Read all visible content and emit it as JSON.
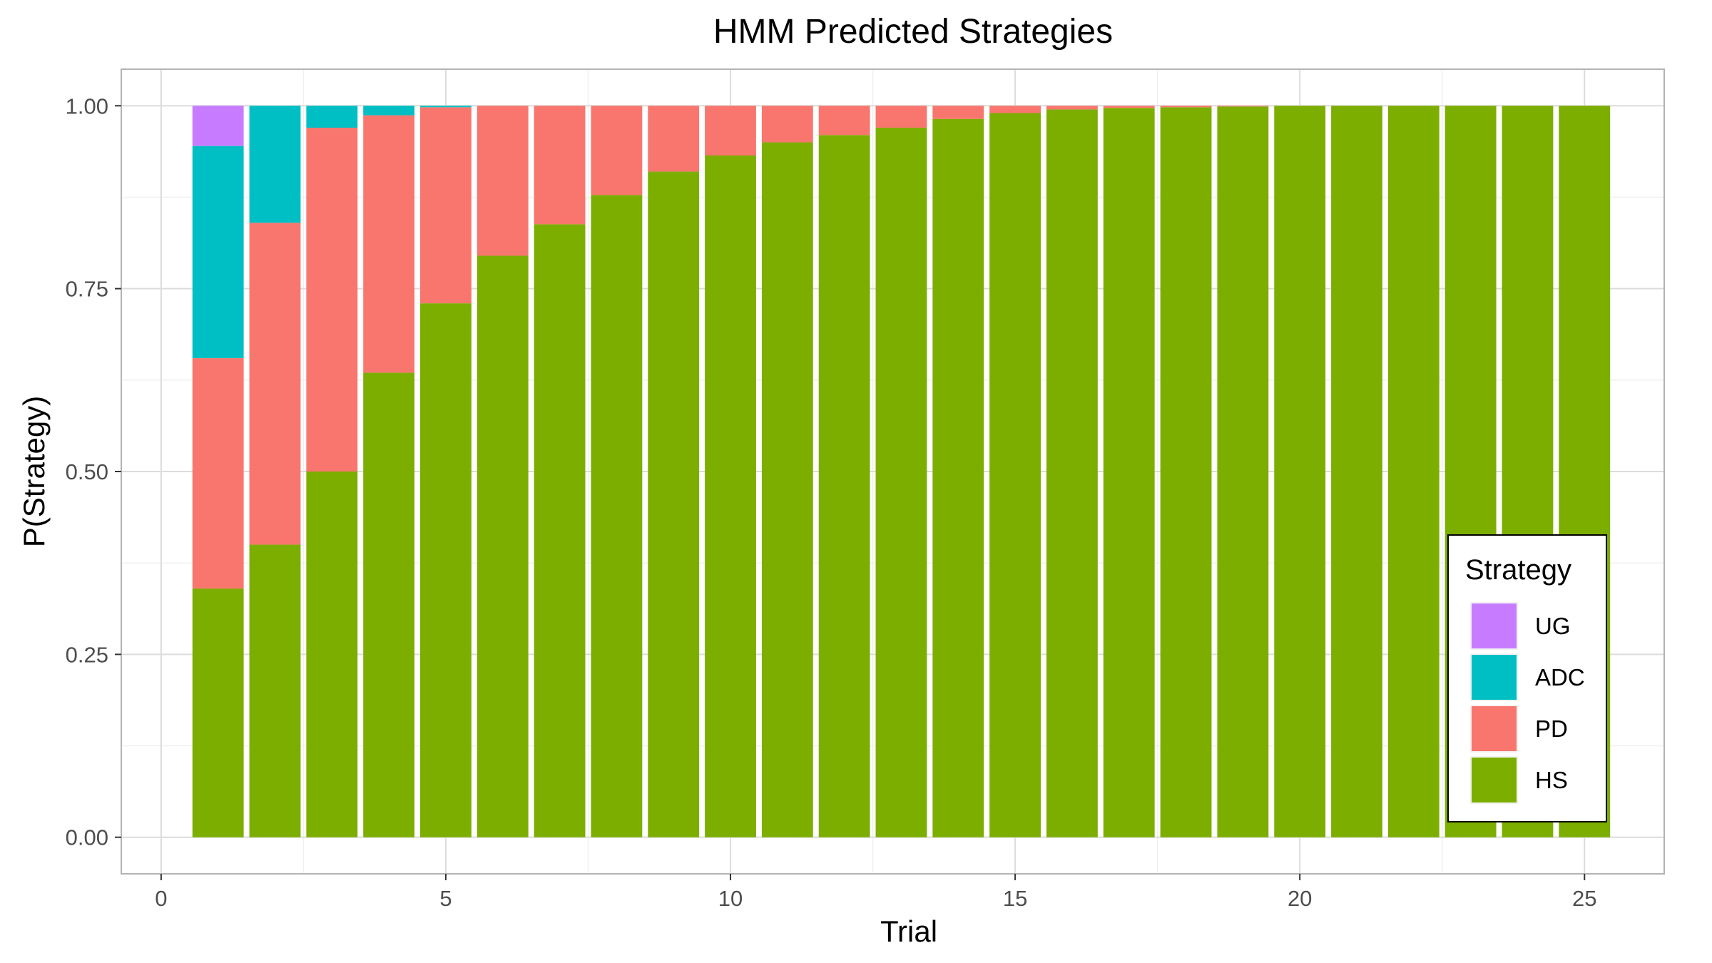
{
  "chart_data": {
    "type": "bar",
    "stacked": true,
    "title": "HMM Predicted Strategies",
    "xlabel": "Trial",
    "ylabel": "P(Strategy)",
    "xlim": [
      -0.7,
      26.4
    ],
    "ylim": [
      -0.05,
      1.05
    ],
    "x_ticks": [
      0,
      5,
      10,
      15,
      20,
      25
    ],
    "x_tick_labels": [
      "0",
      "5",
      "10",
      "15",
      "20",
      "25"
    ],
    "y_ticks": [
      0,
      0.25,
      0.5,
      0.75,
      1.0
    ],
    "y_tick_labels": [
      "0.00",
      "0.25",
      "0.50",
      "0.75",
      "1.00"
    ],
    "grid": true,
    "legend_position": "bottom-right inside",
    "legend_title": "Strategy",
    "categories": [
      1,
      2,
      3,
      4,
      5,
      6,
      7,
      8,
      9,
      10,
      11,
      12,
      13,
      14,
      15,
      16,
      17,
      18,
      19,
      20,
      21,
      22,
      23,
      24,
      25
    ],
    "series": [
      {
        "name": "HS",
        "color": "#7CAE00",
        "values": [
          0.34,
          0.4,
          0.5,
          0.635,
          0.73,
          0.795,
          0.838,
          0.878,
          0.91,
          0.932,
          0.95,
          0.96,
          0.97,
          0.982,
          0.99,
          0.995,
          0.997,
          0.998,
          0.999,
          1.0,
          1.0,
          1.0,
          1.0,
          1.0,
          1.0
        ]
      },
      {
        "name": "PD",
        "color": "#F8766D",
        "values": [
          0.315,
          0.44,
          0.47,
          0.352,
          0.268,
          0.205,
          0.162,
          0.122,
          0.09,
          0.068,
          0.05,
          0.04,
          0.03,
          0.018,
          0.01,
          0.005,
          0.003,
          0.002,
          0.001,
          0.0,
          0.0,
          0.0,
          0.0,
          0.0,
          0.0
        ]
      },
      {
        "name": "ADC",
        "color": "#00BFC4",
        "values": [
          0.29,
          0.16,
          0.03,
          0.013,
          0.002,
          0,
          0,
          0,
          0,
          0,
          0,
          0,
          0,
          0,
          0,
          0,
          0,
          0,
          0,
          0,
          0,
          0,
          0,
          0,
          0
        ]
      },
      {
        "name": "UG",
        "color": "#C77CFF",
        "values": [
          0.055,
          0,
          0,
          0,
          0,
          0,
          0,
          0,
          0,
          0,
          0,
          0,
          0,
          0,
          0,
          0,
          0,
          0,
          0,
          0,
          0,
          0,
          0,
          0,
          0
        ]
      }
    ],
    "legend_order": [
      "UG",
      "ADC",
      "PD",
      "HS"
    ]
  }
}
